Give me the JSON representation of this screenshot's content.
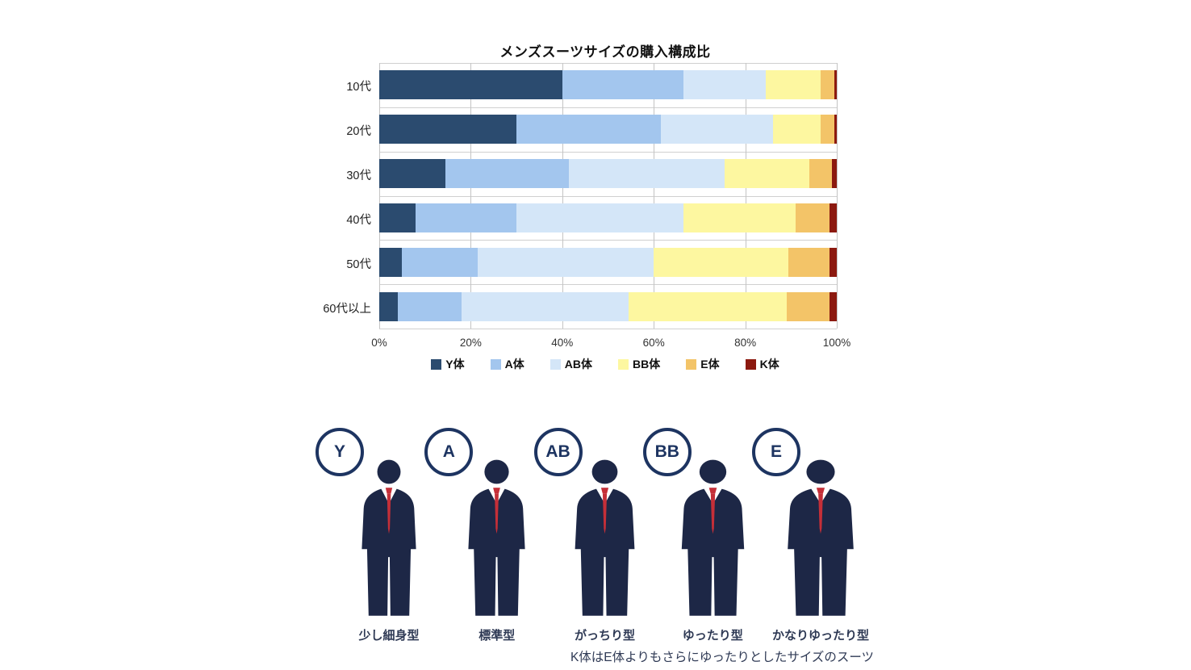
{
  "chart_data": {
    "type": "bar",
    "orientation": "horizontal",
    "stacked": true,
    "unit": "%",
    "title": "メンズスーツサイズの購入構成比",
    "categories": [
      "10代",
      "20代",
      "30代",
      "40代",
      "50代",
      "60代以上"
    ],
    "series": [
      {
        "name": "Y体",
        "color": "#2b4b6f",
        "values": [
          40,
          30,
          14.5,
          8,
          5,
          4
        ]
      },
      {
        "name": "A体",
        "color": "#a3c6ee",
        "values": [
          26.5,
          31.5,
          27,
          22,
          16.5,
          14
        ]
      },
      {
        "name": "AB体",
        "color": "#d4e6f8",
        "values": [
          18,
          24.5,
          34,
          36.5,
          38.5,
          36.5
        ]
      },
      {
        "name": "BB体",
        "color": "#fdf7a0",
        "values": [
          12,
          10.5,
          18.5,
          24.5,
          29.5,
          34.5
        ]
      },
      {
        "name": "E体",
        "color": "#f3c468",
        "values": [
          3,
          3,
          5,
          7.5,
          9,
          9.5
        ]
      },
      {
        "name": "K体",
        "color": "#8c190f",
        "values": [
          0.5,
          0.5,
          1,
          1.5,
          1.5,
          1.5
        ]
      }
    ],
    "x_ticks": [
      "0%",
      "20%",
      "40%",
      "60%",
      "80%",
      "100%"
    ],
    "xlim": [
      0,
      100
    ],
    "grid": true,
    "legend_position": "bottom"
  },
  "size_guide": {
    "items": [
      {
        "badge": "Y",
        "label": "少し細身型"
      },
      {
        "badge": "A",
        "label": "標準型"
      },
      {
        "badge": "AB",
        "label": "がっちり型"
      },
      {
        "badge": "BB",
        "label": "ゆったり型"
      },
      {
        "badge": "E",
        "label": "かなりゆったり型"
      }
    ],
    "footnote": "K体はE体よりもさらにゆったりとしたサイズのスーツ",
    "colors": {
      "suit": "#1d2746",
      "tie": "#c52f38",
      "badge": "#1d3461",
      "label": "#2f3a55"
    }
  }
}
